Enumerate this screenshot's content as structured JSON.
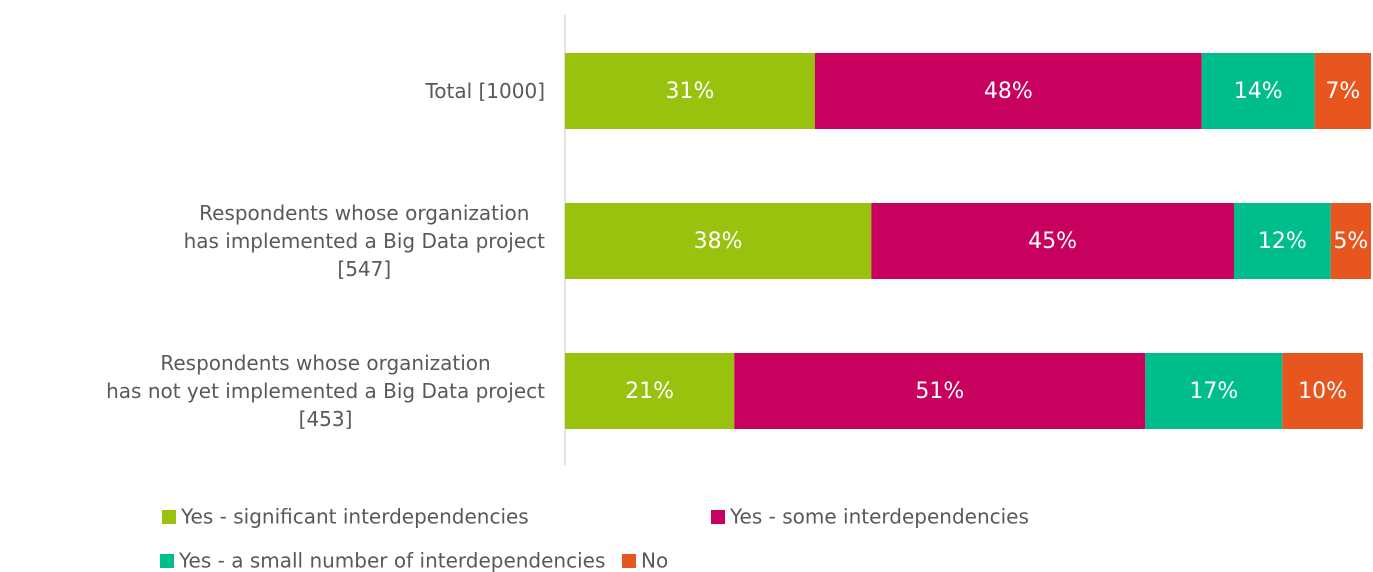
{
  "chart_data": {
    "type": "stacked-bar-horizontal",
    "categories": [
      "Total [1000]",
      "Respondents whose organization\nhas implemented a Big Data project\n[547]",
      "Respondents whose organization\nhas not yet implemented a Big Data project\n[453]"
    ],
    "series": [
      {
        "name": "Yes - significant interdependencies",
        "color": "#99c20e",
        "values": [
          31,
          38,
          21
        ],
        "value_labels": [
          "31%",
          "38%",
          "21%"
        ]
      },
      {
        "name": "Yes - some interdependencies",
        "color": "#c8005e",
        "values": [
          48,
          45,
          51
        ],
        "value_labels": [
          "48%",
          "45%",
          "51%"
        ]
      },
      {
        "name": "Yes - a small number of interdependencies",
        "color": "#00be8c",
        "values": [
          14,
          12,
          17
        ],
        "value_labels": [
          "14%",
          "12%",
          "17%"
        ]
      },
      {
        "name": "No",
        "color": "#e8561f",
        "values": [
          7,
          5,
          10
        ],
        "value_labels": [
          "7%",
          "5%",
          "10%"
        ]
      }
    ],
    "xlim": [
      0,
      100
    ],
    "legend": "bottom"
  }
}
